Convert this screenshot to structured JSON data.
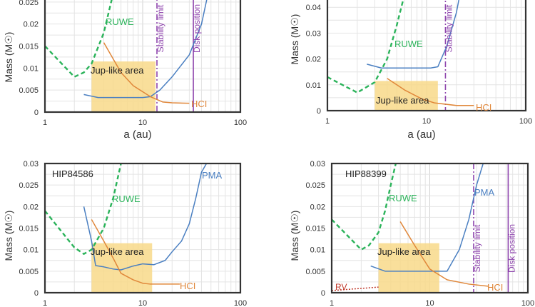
{
  "colors": {
    "ruwe": "#2bb35a",
    "pma": "#4a7fc1",
    "hci": "#e0873a",
    "rv": "#c0392b",
    "jup": "#f8d98a",
    "limit": "#8e44ad",
    "frame": "#333333",
    "grid": "#e4e4e4"
  },
  "chart_data": [
    {
      "type": "line",
      "title": "",
      "xlabel": "a (au)",
      "ylabel": "Mass (M☉)",
      "xscale": "log",
      "xlim": [
        1,
        100
      ],
      "ylim": [
        0,
        0.03
      ],
      "xticks": [
        "1",
        "10",
        "100"
      ],
      "yticks": [
        "0",
        "0.005",
        "0.01",
        "0.015",
        "0.02",
        "0.025"
      ],
      "grid": true,
      "series": [
        {
          "name": "RUWE",
          "style": "dashed",
          "x": [
            1,
            2,
            2.5,
            3,
            4,
            5,
            5.5
          ],
          "y": [
            0.015,
            0.008,
            0.009,
            0.011,
            0.018,
            0.027,
            0.03
          ]
        },
        {
          "name": "PMA",
          "style": "solid",
          "x": [
            2.5,
            3.5,
            10,
            12,
            15,
            20,
            30,
            40,
            50
          ],
          "y": [
            0.004,
            0.0033,
            0.0033,
            0.0035,
            0.005,
            0.008,
            0.013,
            0.02,
            0.03
          ]
        },
        {
          "name": "HCI",
          "style": "solid",
          "x": [
            4,
            6,
            8,
            12,
            16,
            20,
            30
          ],
          "y": [
            0.0158,
            0.009,
            0.006,
            0.0035,
            0.0023,
            0.0021,
            0.002
          ]
        }
      ],
      "region": {
        "label": "Jup-like area",
        "x": [
          3,
          13.5
        ],
        "y": [
          0,
          0.0115
        ]
      },
      "vlines": [
        {
          "label": "Stability limit",
          "x": 14,
          "style": "dashdot"
        },
        {
          "label": "Disk position",
          "x": 33,
          "style": "solid"
        }
      ],
      "labels": {
        "ruwe": "RUWE",
        "hci": "HCI"
      }
    },
    {
      "type": "line",
      "title": "",
      "xlabel": "a (au)",
      "ylabel": "Mass (M☉)",
      "xscale": "log",
      "xlim": [
        1,
        100
      ],
      "ylim": [
        0,
        0.05
      ],
      "xticks": [
        "1",
        "10",
        "100"
      ],
      "yticks": [
        "0",
        "0.01",
        "0.02",
        "0.03",
        "0.04"
      ],
      "grid": true,
      "series": [
        {
          "name": "RUWE",
          "style": "dashed",
          "x": [
            1,
            2,
            3,
            4,
            5,
            6,
            6.5
          ],
          "y": [
            0.013,
            0.007,
            0.011,
            0.02,
            0.033,
            0.045,
            0.05
          ]
        },
        {
          "name": "PMA",
          "style": "solid",
          "x": [
            2.5,
            3.5,
            11,
            13,
            16,
            20,
            23
          ],
          "y": [
            0.018,
            0.0165,
            0.0165,
            0.017,
            0.025,
            0.038,
            0.05
          ]
        },
        {
          "name": "HCI",
          "style": "solid",
          "x": [
            4,
            6,
            9,
            12,
            20,
            30
          ],
          "y": [
            0.0125,
            0.008,
            0.0045,
            0.003,
            0.002,
            0.002
          ]
        }
      ],
      "region": {
        "label": "Jup-like area",
        "x": [
          3,
          13
        ],
        "y": [
          0,
          0.0115
        ]
      },
      "vlines": [
        {
          "label": "Stability limit",
          "x": 15.5,
          "style": "dashdot"
        }
      ],
      "labels": {
        "ruwe": "RUWE",
        "hci": "HCI"
      }
    },
    {
      "type": "line",
      "title": "HIP84586",
      "xlabel": "",
      "ylabel": "Mass (M☉)",
      "xscale": "log",
      "xlim": [
        1,
        100
      ],
      "ylim": [
        0,
        0.03
      ],
      "xticks": [
        "1",
        "10",
        "100"
      ],
      "yticks": [
        "0",
        "0.005",
        "0.01",
        "0.015",
        "0.02",
        "0.025",
        "0.03"
      ],
      "grid": true,
      "series": [
        {
          "name": "RUWE",
          "style": "dashed",
          "x": [
            1,
            2,
            2.5,
            3,
            4,
            5,
            6
          ],
          "y": [
            0.019,
            0.0105,
            0.009,
            0.01,
            0.015,
            0.022,
            0.03
          ]
        },
        {
          "name": "PMA",
          "style": "solid",
          "x": [
            2.5,
            3,
            3.3,
            4,
            5,
            6,
            8,
            10,
            13,
            17,
            20,
            25,
            30,
            35,
            40,
            45
          ],
          "y": [
            0.02,
            0.012,
            0.0063,
            0.006,
            0.0055,
            0.0053,
            0.0062,
            0.0067,
            0.0065,
            0.0075,
            0.0095,
            0.012,
            0.016,
            0.022,
            0.028,
            0.03
          ]
        },
        {
          "name": "HCI",
          "style": "solid",
          "x": [
            3,
            4,
            5,
            6,
            8,
            10,
            12,
            24
          ],
          "y": [
            0.017,
            0.012,
            0.008,
            0.0045,
            0.003,
            0.0022,
            0.002,
            0.002
          ]
        }
      ],
      "region": {
        "label": "Jup-like area",
        "x": [
          3,
          12.5
        ],
        "y": [
          0,
          0.0115
        ]
      },
      "vlines": [],
      "labels": {
        "ruwe": "RUWE",
        "hci": "HCI",
        "pma": "PMA"
      }
    },
    {
      "type": "line",
      "title": "HIP88399",
      "xlabel": "",
      "ylabel": "Mass (M☉)",
      "xscale": "log",
      "xlim": [
        1,
        100
      ],
      "ylim": [
        0,
        0.03
      ],
      "xticks": [
        "1",
        "10",
        "100"
      ],
      "yticks": [
        "0",
        "0.005",
        "0.01",
        "0.015",
        "0.02",
        "0.025",
        "0.03"
      ],
      "grid": true,
      "series": [
        {
          "name": "RUWE",
          "style": "dashed",
          "x": [
            1,
            2,
            2.4,
            3,
            3.5,
            4,
            4.5
          ],
          "y": [
            0.017,
            0.01,
            0.011,
            0.014,
            0.019,
            0.025,
            0.03
          ]
        },
        {
          "name": "PMA",
          "style": "solid",
          "x": [
            2.5,
            3.5,
            15,
            20,
            25,
            30,
            35
          ],
          "y": [
            0.0062,
            0.005,
            0.005,
            0.01,
            0.017,
            0.025,
            0.03
          ]
        },
        {
          "name": "HCI",
          "style": "solid",
          "x": [
            5,
            7,
            10,
            15,
            25,
            40
          ],
          "y": [
            0.0165,
            0.011,
            0.0055,
            0.003,
            0.002,
            0.0015
          ]
        },
        {
          "name": "RV",
          "style": "dotted",
          "x": [
            1,
            3
          ],
          "y": [
            0.0005,
            0.0013
          ]
        }
      ],
      "region": {
        "label": "Jup-like area",
        "x": [
          3,
          12.5
        ],
        "y": [
          0,
          0.0115
        ]
      },
      "vlines": [
        {
          "label": "Stability limit",
          "x": 28,
          "style": "dashdot"
        },
        {
          "label": "Disk position",
          "x": 63,
          "style": "solid"
        }
      ],
      "labels": {
        "ruwe": "RUWE",
        "hci": "HCI",
        "pma": "PMA",
        "rv": "RV"
      }
    }
  ]
}
